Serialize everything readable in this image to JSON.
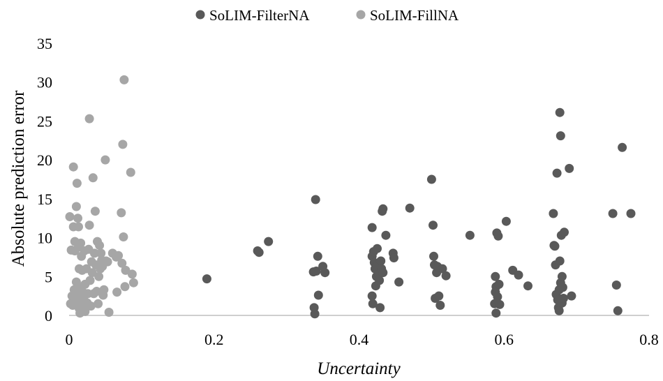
{
  "chart_data": {
    "type": "scatter",
    "title": "",
    "xlabel": "Uncertainty",
    "ylabel": "Absolute prediction error",
    "xlim": [
      0,
      0.8
    ],
    "ylim": [
      0,
      35
    ],
    "xticks": [
      0,
      0.2,
      0.4,
      0.6,
      0.8
    ],
    "xtick_labels": [
      "0",
      "0.2",
      "0.4",
      "0.6",
      "0.8"
    ],
    "yticks": [
      0,
      5,
      10,
      15,
      20,
      25,
      30,
      35
    ],
    "ytick_labels": [
      "0",
      "5",
      "10",
      "15",
      "20",
      "25",
      "30",
      "35"
    ],
    "grid": false,
    "legend_position": "top",
    "series": [
      {
        "name": "SoLIM-FilterNA",
        "color": "#595959",
        "points": [
          [
            0.19,
            4.7
          ],
          [
            0.26,
            8.3
          ],
          [
            0.262,
            8.1
          ],
          [
            0.275,
            9.5
          ],
          [
            0.337,
            5.6
          ],
          [
            0.338,
            1.0
          ],
          [
            0.339,
            0.2
          ],
          [
            0.34,
            14.9
          ],
          [
            0.341,
            5.7
          ],
          [
            0.343,
            7.6
          ],
          [
            0.344,
            2.6
          ],
          [
            0.35,
            6.3
          ],
          [
            0.353,
            5.5
          ],
          [
            0.418,
            11.3
          ],
          [
            0.418,
            7.6
          ],
          [
            0.418,
            2.5
          ],
          [
            0.419,
            1.5
          ],
          [
            0.42,
            8.2
          ],
          [
            0.421,
            6.8
          ],
          [
            0.422,
            6.0
          ],
          [
            0.423,
            3.8
          ],
          [
            0.424,
            5.0
          ],
          [
            0.425,
            8.6
          ],
          [
            0.426,
            6.5
          ],
          [
            0.427,
            5.3
          ],
          [
            0.428,
            4.5
          ],
          [
            0.429,
            1.0
          ],
          [
            0.43,
            7.0
          ],
          [
            0.431,
            6.0
          ],
          [
            0.432,
            13.4
          ],
          [
            0.433,
            13.7
          ],
          [
            0.433,
            5.5
          ],
          [
            0.437,
            10.3
          ],
          [
            0.447,
            8.0
          ],
          [
            0.448,
            7.4
          ],
          [
            0.455,
            4.3
          ],
          [
            0.47,
            13.8
          ],
          [
            0.5,
            17.5
          ],
          [
            0.502,
            11.6
          ],
          [
            0.503,
            7.6
          ],
          [
            0.504,
            6.5
          ],
          [
            0.505,
            2.2
          ],
          [
            0.507,
            5.5
          ],
          [
            0.508,
            6.3
          ],
          [
            0.51,
            2.5
          ],
          [
            0.512,
            1.3
          ],
          [
            0.515,
            6.0
          ],
          [
            0.52,
            5.1
          ],
          [
            0.553,
            10.3
          ],
          [
            0.587,
            1.5
          ],
          [
            0.588,
            5.0
          ],
          [
            0.588,
            3.0
          ],
          [
            0.589,
            3.7
          ],
          [
            0.589,
            0.3
          ],
          [
            0.59,
            10.6
          ],
          [
            0.591,
            2.4
          ],
          [
            0.592,
            10.2
          ],
          [
            0.593,
            4.0
          ],
          [
            0.594,
            1.4
          ],
          [
            0.603,
            12.1
          ],
          [
            0.612,
            5.8
          ],
          [
            0.62,
            5.2
          ],
          [
            0.633,
            3.8
          ],
          [
            0.668,
            13.1
          ],
          [
            0.669,
            9.0
          ],
          [
            0.67,
            8.9
          ],
          [
            0.671,
            6.5
          ],
          [
            0.672,
            2.7
          ],
          [
            0.673,
            18.3
          ],
          [
            0.674,
            2.0
          ],
          [
            0.675,
            1.0
          ],
          [
            0.676,
            3.3
          ],
          [
            0.676,
            0.6
          ],
          [
            0.677,
            26.1
          ],
          [
            0.677,
            7.0
          ],
          [
            0.678,
            4.2
          ],
          [
            0.678,
            23.1
          ],
          [
            0.679,
            10.3
          ],
          [
            0.68,
            5.0
          ],
          [
            0.68,
            1.6
          ],
          [
            0.681,
            3.6
          ],
          [
            0.682,
            2.2
          ],
          [
            0.683,
            10.7
          ],
          [
            0.69,
            18.9
          ],
          [
            0.693,
            2.5
          ],
          [
            0.75,
            13.1
          ],
          [
            0.755,
            3.9
          ],
          [
            0.757,
            0.6
          ],
          [
            0.763,
            21.6
          ],
          [
            0.775,
            13.1
          ]
        ]
      },
      {
        "name": "SoLIM-FillNA",
        "color": "#a6a6a6",
        "points": [
          [
            0.001,
            12.7
          ],
          [
            0.002,
            1.5
          ],
          [
            0.003,
            8.4
          ],
          [
            0.004,
            2.5
          ],
          [
            0.005,
            1.3
          ],
          [
            0.006,
            19.1
          ],
          [
            0.006,
            11.4
          ],
          [
            0.007,
            3.3
          ],
          [
            0.008,
            8.3
          ],
          [
            0.008,
            9.5
          ],
          [
            0.009,
            2.0
          ],
          [
            0.01,
            14.0
          ],
          [
            0.01,
            4.3
          ],
          [
            0.011,
            17.0
          ],
          [
            0.011,
            3.0
          ],
          [
            0.012,
            12.5
          ],
          [
            0.012,
            1.8
          ],
          [
            0.013,
            11.4
          ],
          [
            0.013,
            8.8
          ],
          [
            0.014,
            6.0
          ],
          [
            0.014,
            0.9
          ],
          [
            0.015,
            2.8
          ],
          [
            0.015,
            0.3
          ],
          [
            0.016,
            9.3
          ],
          [
            0.016,
            3.6
          ],
          [
            0.017,
            7.6
          ],
          [
            0.017,
            1.3
          ],
          [
            0.018,
            5.8
          ],
          [
            0.019,
            3.0
          ],
          [
            0.019,
            0.7
          ],
          [
            0.02,
            2.2
          ],
          [
            0.021,
            8.3
          ],
          [
            0.021,
            1.0
          ],
          [
            0.022,
            4.0
          ],
          [
            0.022,
            0.5
          ],
          [
            0.024,
            6.0
          ],
          [
            0.025,
            1.6
          ],
          [
            0.026,
            2.8
          ],
          [
            0.027,
            8.5
          ],
          [
            0.028,
            25.3
          ],
          [
            0.028,
            11.6
          ],
          [
            0.029,
            4.5
          ],
          [
            0.03,
            1.2
          ],
          [
            0.031,
            6.9
          ],
          [
            0.032,
            5.5
          ],
          [
            0.033,
            17.7
          ],
          [
            0.034,
            2.8
          ],
          [
            0.035,
            8.0
          ],
          [
            0.036,
            13.4
          ],
          [
            0.037,
            6.5
          ],
          [
            0.038,
            3.1
          ],
          [
            0.039,
            9.5
          ],
          [
            0.04,
            1.5
          ],
          [
            0.041,
            5.0
          ],
          [
            0.042,
            9.0
          ],
          [
            0.043,
            6.0
          ],
          [
            0.044,
            8.0
          ],
          [
            0.045,
            7.1
          ],
          [
            0.046,
            6.3
          ],
          [
            0.047,
            2.6
          ],
          [
            0.048,
            3.3
          ],
          [
            0.05,
            20.0
          ],
          [
            0.051,
            7.0
          ],
          [
            0.053,
            6.9
          ],
          [
            0.055,
            0.4
          ],
          [
            0.06,
            8.0
          ],
          [
            0.065,
            7.5
          ],
          [
            0.066,
            3.0
          ],
          [
            0.068,
            7.7
          ],
          [
            0.072,
            13.2
          ],
          [
            0.073,
            6.7
          ],
          [
            0.074,
            22.0
          ],
          [
            0.075,
            10.1
          ],
          [
            0.076,
            30.3
          ],
          [
            0.077,
            3.7
          ],
          [
            0.078,
            5.8
          ],
          [
            0.085,
            18.4
          ],
          [
            0.087,
            5.3
          ],
          [
            0.089,
            4.2
          ]
        ]
      }
    ]
  }
}
